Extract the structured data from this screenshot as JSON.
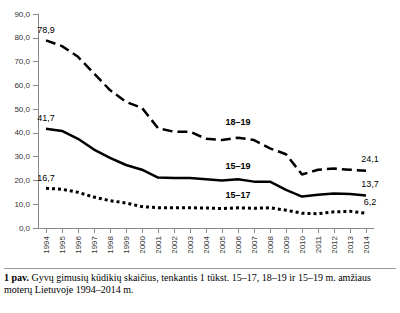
{
  "chart_data": {
    "type": "line",
    "categories": [
      "1994",
      "1995",
      "1996",
      "1997",
      "1998",
      "1999",
      "2000",
      "2001",
      "2002",
      "2003",
      "2004",
      "2005",
      "2006",
      "2007",
      "2008",
      "2009",
      "2010",
      "2011",
      "2012",
      "2013",
      "2014"
    ],
    "series": [
      {
        "name": "18–19",
        "color": "#000000",
        "line_style": "dashed",
        "values": [
          78.9,
          76.5,
          72.0,
          65.0,
          58.0,
          53.0,
          50.5,
          42.0,
          40.5,
          40.5,
          37.5,
          37.0,
          38.0,
          37.0,
          33.5,
          31.0,
          22.5,
          24.5,
          25.0,
          24.5,
          24.1
        ],
        "value_labels": [
          "78,9",
          null,
          null,
          null,
          null,
          null,
          null,
          null,
          null,
          null,
          null,
          null,
          null,
          null,
          null,
          null,
          null,
          null,
          null,
          null,
          "24,1"
        ]
      },
      {
        "name": "15–19",
        "color": "#000000",
        "line_style": "solid",
        "values": [
          41.7,
          40.8,
          37.5,
          33.0,
          29.5,
          26.5,
          24.5,
          21.2,
          21.0,
          21.0,
          20.5,
          20.0,
          20.5,
          19.5,
          19.5,
          16.0,
          13.2,
          14.0,
          14.5,
          14.3,
          13.7
        ],
        "value_labels": [
          "41,7",
          null,
          null,
          null,
          null,
          null,
          null,
          null,
          null,
          null,
          null,
          null,
          null,
          null,
          null,
          null,
          null,
          null,
          null,
          null,
          "13,7"
        ]
      },
      {
        "name": "15–17",
        "color": "#000000",
        "line_style": "dotted",
        "values": [
          16.7,
          16.3,
          15.0,
          13.0,
          11.5,
          10.5,
          9.0,
          8.5,
          8.5,
          8.5,
          8.4,
          8.2,
          8.5,
          8.3,
          8.5,
          7.5,
          6.2,
          6.0,
          6.8,
          7.0,
          6.2
        ],
        "value_labels": [
          "16,7",
          null,
          null,
          null,
          null,
          null,
          null,
          null,
          null,
          null,
          null,
          null,
          null,
          null,
          null,
          null,
          null,
          null,
          null,
          null,
          "6,2"
        ]
      }
    ],
    "ylim": [
      0,
      90
    ],
    "yticks": [
      {
        "value": 0,
        "label": "0,0"
      },
      {
        "value": 10,
        "label": "10,0"
      },
      {
        "value": 20,
        "label": "20,0"
      },
      {
        "value": 30,
        "label": "30,0"
      },
      {
        "value": 40,
        "label": "40,0"
      },
      {
        "value": 50,
        "label": "50,0"
      },
      {
        "value": 60,
        "label": "60,0"
      },
      {
        "value": 70,
        "label": "70,0"
      },
      {
        "value": 80,
        "label": "80,0"
      },
      {
        "value": 90,
        "label": "90,0"
      }
    ],
    "grid": false,
    "data_labels": true,
    "caption": {
      "label": "1 pav.",
      "text": "Gyvų gimusių kūdikių skaičius, tenkantis 1 tūkst. 15–17, 18–19 ir 15–19 m. amžiaus moterų Lietuvoje 1994–2014 m."
    }
  }
}
